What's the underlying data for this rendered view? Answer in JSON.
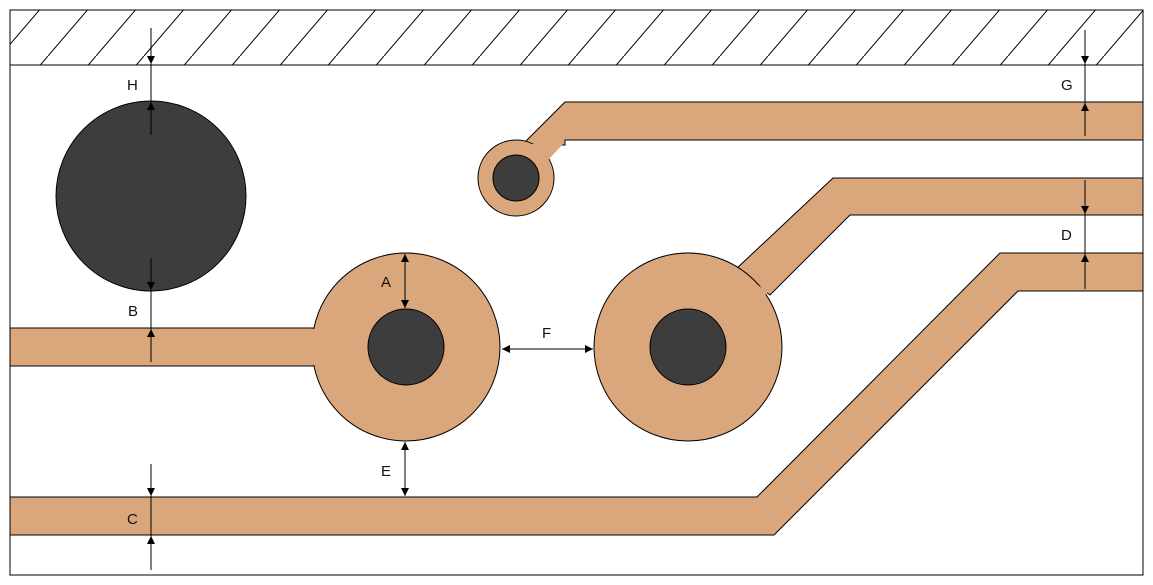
{
  "colors": {
    "copper": "#d9a77b",
    "hole": "#3d3d3d",
    "outline": "#000000",
    "board": "#ffffff"
  },
  "labels": {
    "a": "A",
    "b": "B",
    "c": "C",
    "d": "D",
    "e": "E",
    "f": "F",
    "g": "G",
    "h": "H"
  }
}
